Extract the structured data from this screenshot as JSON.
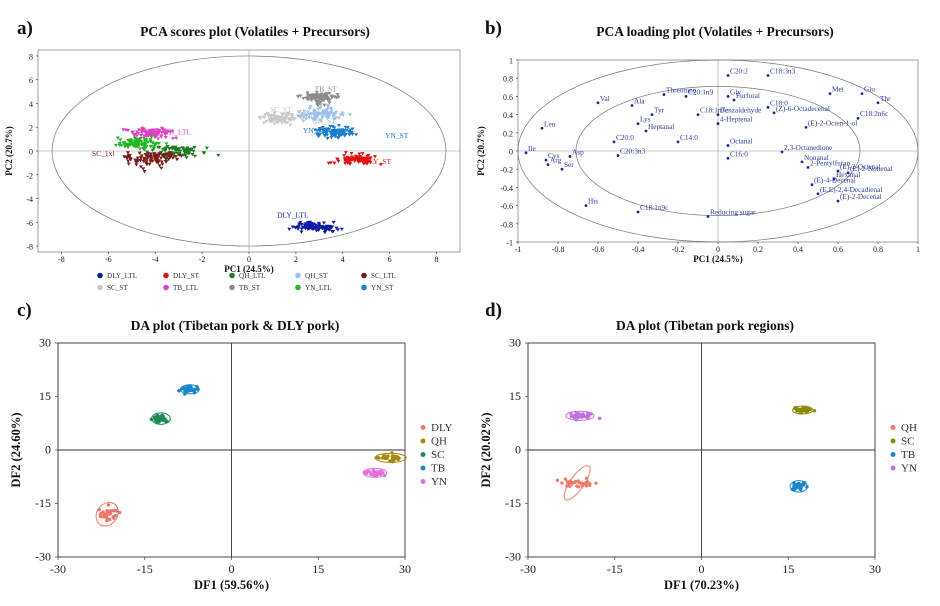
{
  "panels": [
    {
      "letter": "a)",
      "title": "PCA scores plot (Volatiles + Precursors)"
    },
    {
      "letter": "b)",
      "title": "PCA loading plot (Volatiles + Precursors)"
    },
    {
      "letter": "c)",
      "title": "DA plot (Tibetan pork & DLY pork)"
    },
    {
      "letter": "d)",
      "title": "DA plot (Tibetan pork regions)"
    }
  ],
  "chart_data": [
    {
      "type": "scatter",
      "title": "PCA scores plot (Volatiles + Precursors)",
      "xlabel": "PC1 (24.5%)",
      "ylabel": "PC2 (20.7%)",
      "xlim": [
        -9,
        9
      ],
      "ylim": [
        -8.5,
        8.5
      ],
      "xticks": [
        -8,
        -6,
        -4,
        -2,
        0,
        2,
        4,
        6,
        8
      ],
      "yticks": [
        -8,
        -6,
        -4,
        -2,
        0,
        2,
        4,
        6,
        8
      ],
      "legend_position": "bottom",
      "series": [
        {
          "name": "DLY_LTL",
          "color": "#0a1aa8",
          "center": [
            2.8,
            -6.4
          ],
          "spread": [
            0.9,
            0.35
          ]
        },
        {
          "name": "DLY_ST",
          "color": "#e01010",
          "center": [
            4.6,
            -0.7
          ],
          "spread": [
            0.75,
            0.35
          ]
        },
        {
          "name": "QH_LTL",
          "color": "#1f7a1f",
          "center": [
            -3.1,
            0.0
          ],
          "spread": [
            0.9,
            0.5
          ]
        },
        {
          "name": "QH_ST",
          "color": "#9ec0ea",
          "center": [
            3.0,
            3.1
          ],
          "spread": [
            0.9,
            0.5
          ]
        },
        {
          "name": "SC_LTL",
          "color": "#7a1b1b",
          "center": [
            -4.2,
            -0.7
          ],
          "spread": [
            1.0,
            0.6
          ]
        },
        {
          "name": "SC_ST",
          "color": "#c8c8c8",
          "center": [
            1.3,
            2.7
          ],
          "spread": [
            0.8,
            0.4
          ]
        },
        {
          "name": "TB_LTL",
          "color": "#e040c8",
          "center": [
            -4.2,
            1.5
          ],
          "spread": [
            0.75,
            0.35
          ]
        },
        {
          "name": "TB_ST",
          "color": "#8a8a8a",
          "center": [
            3.0,
            4.5
          ],
          "spread": [
            0.6,
            0.4
          ]
        },
        {
          "name": "YN_LTL",
          "color": "#22b822",
          "center": [
            -4.8,
            0.6
          ],
          "spread": [
            0.8,
            0.45
          ]
        },
        {
          "name": "YN_ST",
          "color": "#1a7cd0",
          "center": [
            3.7,
            1.6
          ],
          "spread": [
            0.8,
            0.4
          ]
        }
      ],
      "group_labels": [
        {
          "text": "TB_ST",
          "x": 2.8,
          "y": 5.0,
          "color": "#8a8a8a"
        },
        {
          "text": "SC_ST",
          "x": 0.9,
          "y": 3.3,
          "color": "#c8c8c8"
        },
        {
          "text": "QH_ST",
          "x": 2.7,
          "y": 2.3,
          "color": "#9ec0ea"
        },
        {
          "text": "YN_ST",
          "x": 2.3,
          "y": 1.5,
          "color": "#1a7cd0"
        },
        {
          "text": "YN_ST",
          "x": 5.8,
          "y": 1.1,
          "color": "#1a7cd0"
        },
        {
          "text": "DLY_ST",
          "x": 4.9,
          "y": -1.1,
          "color": "#e01010"
        },
        {
          "text": "DLY_LTL",
          "x": 1.2,
          "y": -5.6,
          "color": "#0a1aa8"
        },
        {
          "text": "TB_LTL",
          "x": -3.6,
          "y": 1.4,
          "color": "#e040c8"
        },
        {
          "text": "SC_1xl",
          "x": -6.7,
          "y": -0.4,
          "color": "#7a1b1b"
        }
      ]
    },
    {
      "type": "scatter",
      "title": "PCA loading plot (Volatiles + Precursors)",
      "xlabel": "PC1 (24.5%)",
      "ylabel": "PC2 (20.7%)",
      "xlim": [
        -1,
        1
      ],
      "ylim": [
        -1,
        1
      ],
      "xticks": [
        -1,
        -0.8,
        -0.6,
        -0.4,
        -0.2,
        0,
        0.2,
        0.4,
        0.6,
        0.8,
        1
      ],
      "yticks": [
        -1,
        -0.8,
        -0.6,
        -0.4,
        -0.2,
        0,
        0.2,
        0.4,
        0.6,
        0.8,
        1
      ],
      "points": [
        {
          "label": "C20:2",
          "x": 0.05,
          "y": 0.83
        },
        {
          "label": "C18:3n3",
          "x": 0.25,
          "y": 0.83
        },
        {
          "label": "Met",
          "x": 0.56,
          "y": 0.63
        },
        {
          "label": "Glu",
          "x": 0.72,
          "y": 0.63
        },
        {
          "label": "Thr",
          "x": 0.8,
          "y": 0.53
        },
        {
          "label": "Threonine",
          "x": -0.27,
          "y": 0.62
        },
        {
          "label": "Val",
          "x": -0.6,
          "y": 0.53
        },
        {
          "label": "Ala",
          "x": -0.43,
          "y": 0.5
        },
        {
          "label": "Tyr",
          "x": -0.33,
          "y": 0.4
        },
        {
          "label": "C20:1n9",
          "x": -0.16,
          "y": 0.6
        },
        {
          "label": "C18:1n7c",
          "x": -0.1,
          "y": 0.4
        },
        {
          "label": "Lys",
          "x": -0.4,
          "y": 0.3
        },
        {
          "label": "Heptanal",
          "x": -0.36,
          "y": 0.22
        },
        {
          "label": "C14:0",
          "x": -0.2,
          "y": 0.1
        },
        {
          "label": "C20:0",
          "x": -0.52,
          "y": 0.1
        },
        {
          "label": "C20:3n3",
          "x": -0.5,
          "y": -0.05
        },
        {
          "label": "Leu",
          "x": -0.88,
          "y": 0.25
        },
        {
          "label": "Ile",
          "x": -0.96,
          "y": -0.02
        },
        {
          "label": "Cys",
          "x": -0.86,
          "y": -0.1
        },
        {
          "label": "Asp",
          "x": -0.74,
          "y": -0.06
        },
        {
          "label": "Arg",
          "x": -0.85,
          "y": -0.15
        },
        {
          "label": "Ser",
          "x": -0.78,
          "y": -0.2
        },
        {
          "label": "Gly",
          "x": 0.05,
          "y": 0.6
        },
        {
          "label": "Furfural",
          "x": 0.08,
          "y": 0.56
        },
        {
          "label": "Benzaldehyde",
          "x": 0.0,
          "y": 0.4
        },
        {
          "label": "4-Heptenal",
          "x": 0.0,
          "y": 0.3
        },
        {
          "label": "Octanal",
          "x": 0.05,
          "y": 0.06
        },
        {
          "label": "C16:0",
          "x": 0.05,
          "y": -0.08
        },
        {
          "label": "C18:0",
          "x": 0.25,
          "y": 0.48
        },
        {
          "label": "(Z)-6-Octadecenal",
          "x": 0.28,
          "y": 0.42
        },
        {
          "label": "C18:2n6c",
          "x": 0.7,
          "y": 0.36
        },
        {
          "label": "(E)-2-Octen-1-ol",
          "x": 0.44,
          "y": 0.26
        },
        {
          "label": "2,3-Octanedione",
          "x": 0.32,
          "y": -0.01
        },
        {
          "label": "Nonanal",
          "x": 0.42,
          "y": -0.12
        },
        {
          "label": "2-Pentylfuran",
          "x": 0.45,
          "y": -0.18
        },
        {
          "label": "(E)-2-Octenal",
          "x": 0.6,
          "y": -0.22
        },
        {
          "label": "(E)-2-Nonenal",
          "x": 0.65,
          "y": -0.24
        },
        {
          "label": "Hexanal",
          "x": 0.58,
          "y": -0.31
        },
        {
          "label": "(E)-4-Decenal",
          "x": 0.47,
          "y": -0.37
        },
        {
          "label": "(E,E)-2,4-Decadienal",
          "x": 0.5,
          "y": -0.47
        },
        {
          "label": "(E)-2-Decenal",
          "x": 0.6,
          "y": -0.55
        },
        {
          "label": "Reducing sugar",
          "x": -0.05,
          "y": -0.72
        },
        {
          "label": "His",
          "x": -0.66,
          "y": -0.6
        },
        {
          "label": "C18:1n9c",
          "x": -0.4,
          "y": -0.67
        }
      ]
    },
    {
      "type": "scatter",
      "title": "DA plot (Tibetan pork & DLY pork)",
      "xlabel": "DF1 (59.56%)",
      "ylabel": "DF2 (24.60%)",
      "xlim": [
        -30,
        30
      ],
      "ylim": [
        -30,
        30
      ],
      "xticks": [
        -30,
        -15,
        0,
        15,
        30
      ],
      "yticks": [
        -30,
        -15,
        0,
        15,
        30
      ],
      "legend_position": "right",
      "series": [
        {
          "name": "DLY",
          "color": "#f0786a",
          "center": [
            -21.5,
            -18.0
          ],
          "spread": [
            1.6,
            1.8
          ]
        },
        {
          "name": "QH",
          "color": "#a88a0a",
          "center": [
            27.5,
            -2.2
          ],
          "spread": [
            2.0,
            0.8
          ]
        },
        {
          "name": "SC",
          "color": "#1f8a5a",
          "center": [
            -12.2,
            8.8
          ],
          "spread": [
            1.2,
            1.0
          ]
        },
        {
          "name": "TB",
          "color": "#1a88c8",
          "center": [
            -7.2,
            17.0
          ],
          "spread": [
            1.2,
            0.8
          ]
        },
        {
          "name": "YN",
          "color": "#e070e0",
          "center": [
            24.8,
            -6.4
          ],
          "spread": [
            1.5,
            0.8
          ]
        }
      ]
    },
    {
      "type": "scatter",
      "title": "DA plot (Tibetan pork regions)",
      "xlabel": "DF1 (70.23%)",
      "ylabel": "DF2 (20.02%)",
      "xlim": [
        -30,
        30
      ],
      "ylim": [
        -30,
        30
      ],
      "xticks": [
        -30,
        -15,
        0,
        15,
        30
      ],
      "yticks": [
        -30,
        -15,
        0,
        15,
        30
      ],
      "legend_position": "right",
      "series": [
        {
          "name": "QH",
          "color": "#f0786a",
          "center": [
            -21.5,
            -9.2
          ],
          "spread": [
            2.6,
            1.2
          ]
        },
        {
          "name": "SC",
          "color": "#8a8a0a",
          "center": [
            17.5,
            11.2
          ],
          "spread": [
            1.3,
            0.7
          ]
        },
        {
          "name": "TB",
          "color": "#1a88c8",
          "center": [
            16.8,
            -10.2
          ],
          "spread": [
            1.1,
            1.0
          ]
        },
        {
          "name": "YN",
          "color": "#c070e0",
          "center": [
            -21.0,
            9.6
          ],
          "spread": [
            1.8,
            0.8
          ]
        }
      ]
    }
  ]
}
